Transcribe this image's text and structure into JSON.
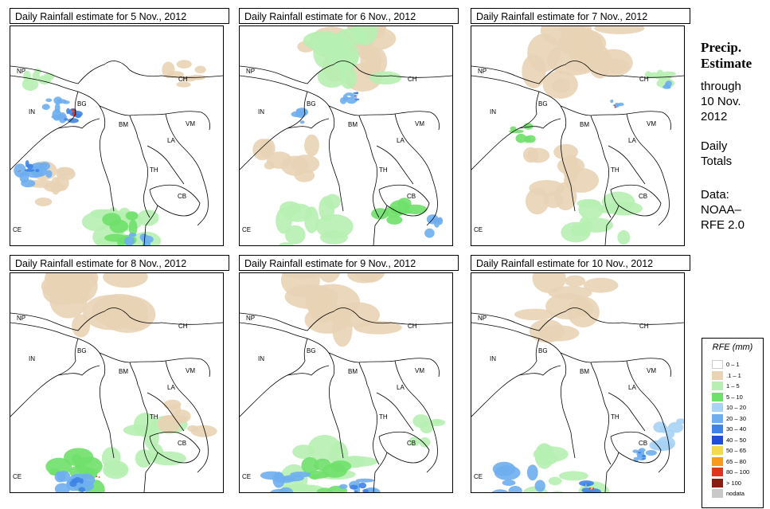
{
  "panels": [
    {
      "title": "Daily Rainfall estimate for  5 Nov., 2012"
    },
    {
      "title": "Daily Rainfall estimate for  6 Nov., 2012"
    },
    {
      "title": "Daily Rainfall estimate for  7 Nov., 2012"
    },
    {
      "title": "Daily Rainfall estimate for  8 Nov., 2012"
    },
    {
      "title": "Daily Rainfall estimate for  9 Nov., 2012"
    },
    {
      "title": "Daily Rainfall estimate for  10 Nov., 2012"
    }
  ],
  "country_labels": [
    "NP",
    "CH",
    "IN",
    "BG",
    "BM",
    "VM",
    "LA",
    "TH",
    "CB",
    "CE"
  ],
  "side": {
    "title_line1": "Precip.",
    "title_line2": "Estimate",
    "through": "through",
    "date_line1": "10 Nov.",
    "date_line2": "2012",
    "daily_line1": "Daily",
    "daily_line2": "Totals",
    "data_line1": "Data:",
    "data_line2": "NOAA–",
    "data_line3": "RFE 2.0"
  },
  "legend": {
    "title": "RFE (mm)",
    "items": [
      {
        "label": "0 – 1",
        "color": "#ffffff"
      },
      {
        "label": ".1 – 1",
        "color": "#e8d3b5"
      },
      {
        "label": "1 – 5",
        "color": "#b6efb1"
      },
      {
        "label": "5 – 10",
        "color": "#6fe06a"
      },
      {
        "label": "10 – 20",
        "color": "#a9d3f5"
      },
      {
        "label": "20 – 30",
        "color": "#6eaef0"
      },
      {
        "label": "30 – 40",
        "color": "#3f83e6"
      },
      {
        "label": "40 – 50",
        "color": "#1f4fd8"
      },
      {
        "label": "50 – 65",
        "color": "#f4d94a"
      },
      {
        "label": "65 – 80",
        "color": "#f79a1e"
      },
      {
        "label": "80 – 100",
        "color": "#e0341b"
      },
      {
        "label": "> 100",
        "color": "#8a1c12"
      },
      {
        "label": "nodata",
        "color": "#c8c8c8"
      }
    ]
  }
}
